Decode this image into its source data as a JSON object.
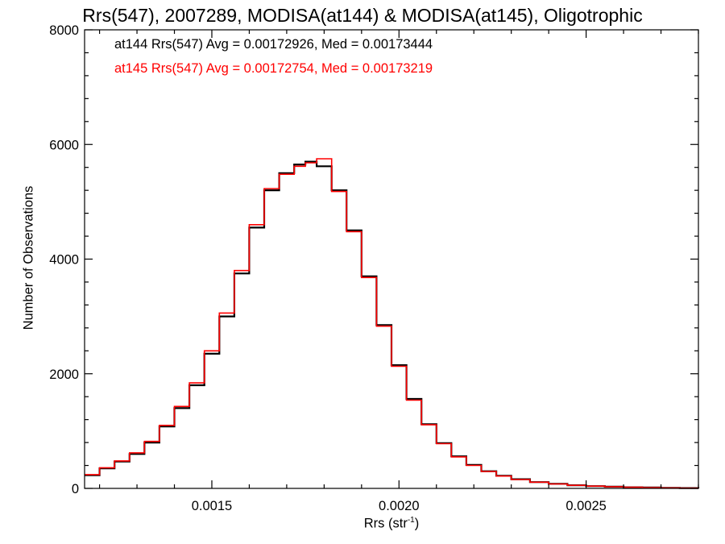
{
  "chart_data": {
    "type": "line",
    "title": "Rrs(547), 2007289, MODISA(at144) & MODISA(at145), Oligotrophic",
    "xlabel": "Rrs (str",
    "xlabel_sup": "-1",
    "xlabel_end": ")",
    "ylabel": "Number of Observations",
    "xlim": [
      0.00116,
      0.0028
    ],
    "ylim": [
      0,
      8000
    ],
    "x_ticks": [
      0.0015,
      0.002,
      0.0025
    ],
    "x_tick_labels": [
      "0.0015",
      "0.0020",
      "0.0025"
    ],
    "y_ticks": [
      0,
      2000,
      4000,
      6000,
      8000
    ],
    "y_tick_labels": [
      "0",
      "2000",
      "4000",
      "6000",
      "8000"
    ],
    "grid": false,
    "annotations": [
      {
        "text": "at144 Rrs(547) Avg = 0.00172926, Med = 0.00173444",
        "color": "#000000"
      },
      {
        "text": "at145 Rrs(547) Avg = 0.00172754, Med = 0.00173219",
        "color": "#ff0000"
      }
    ],
    "series": [
      {
        "name": "at144",
        "color": "#000000",
        "x": [
          0.00116,
          0.0012,
          0.00124,
          0.00128,
          0.00132,
          0.00136,
          0.0014,
          0.00144,
          0.00148,
          0.00152,
          0.00156,
          0.0016,
          0.00164,
          0.00168,
          0.00172,
          0.00175,
          0.00178,
          0.00182,
          0.00186,
          0.0019,
          0.00194,
          0.00198,
          0.00202,
          0.00206,
          0.0021,
          0.00214,
          0.00218,
          0.00222,
          0.00226,
          0.0023,
          0.00235,
          0.0024,
          0.00245,
          0.0025,
          0.00255,
          0.0026,
          0.00265,
          0.0027,
          0.00275,
          0.0028
        ],
        "y": [
          230,
          350,
          470,
          600,
          800,
          1080,
          1400,
          1800,
          2350,
          3000,
          3750,
          4550,
          5200,
          5500,
          5650,
          5700,
          5620,
          5200,
          4500,
          3700,
          2850,
          2150,
          1560,
          1120,
          790,
          560,
          410,
          300,
          220,
          160,
          110,
          80,
          55,
          40,
          30,
          20,
          15,
          10,
          5,
          0
        ]
      },
      {
        "name": "at145",
        "color": "#ff0000",
        "x": [
          0.00116,
          0.0012,
          0.00124,
          0.00128,
          0.00132,
          0.00136,
          0.0014,
          0.00144,
          0.00148,
          0.00152,
          0.00156,
          0.0016,
          0.00164,
          0.00168,
          0.00172,
          0.00175,
          0.00178,
          0.00182,
          0.00186,
          0.0019,
          0.00194,
          0.00198,
          0.00202,
          0.00206,
          0.0021,
          0.00214,
          0.00218,
          0.00222,
          0.00226,
          0.0023,
          0.00235,
          0.0024,
          0.00245,
          0.0025,
          0.00255,
          0.0026,
          0.00265,
          0.0027,
          0.00275,
          0.0028
        ],
        "y": [
          240,
          360,
          480,
          620,
          820,
          1100,
          1430,
          1840,
          2400,
          3060,
          3800,
          4600,
          5230,
          5480,
          5620,
          5680,
          5750,
          5180,
          4480,
          3680,
          2830,
          2130,
          1540,
          1110,
          780,
          550,
          400,
          295,
          215,
          155,
          108,
          78,
          53,
          39,
          29,
          19,
          14,
          9,
          4,
          0
        ]
      }
    ]
  }
}
